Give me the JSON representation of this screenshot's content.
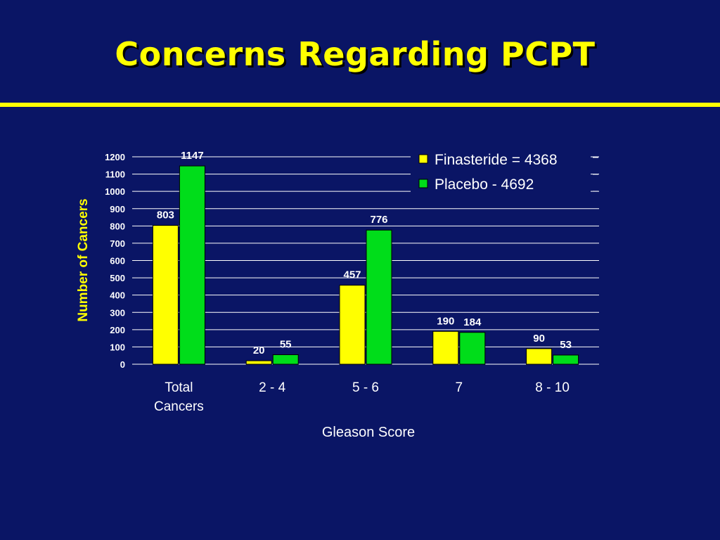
{
  "slide": {
    "title": "Concerns Regarding PCPT",
    "title_color": "#ffff00",
    "background": "#0a1565"
  },
  "chart_data": {
    "type": "bar",
    "categories": [
      "Total Cancers",
      "2 - 4",
      "5 - 6",
      "7",
      "8 - 10"
    ],
    "series": [
      {
        "name": "Finasteride = 4368",
        "color": "#ffff00",
        "values": [
          803,
          20,
          457,
          190,
          90
        ]
      },
      {
        "name": "Placebo - 4692",
        "color": "#00dd1a",
        "values": [
          1147,
          55,
          776,
          184,
          53
        ]
      }
    ],
    "xlabel": "Gleason Score",
    "ylabel": "Number of Cancers",
    "ylim": [
      0,
      1200
    ],
    "yticks": [
      0,
      100,
      200,
      300,
      400,
      500,
      600,
      700,
      800,
      900,
      1000,
      1100,
      1200
    ],
    "grid": true,
    "legend_position": "top-right"
  }
}
